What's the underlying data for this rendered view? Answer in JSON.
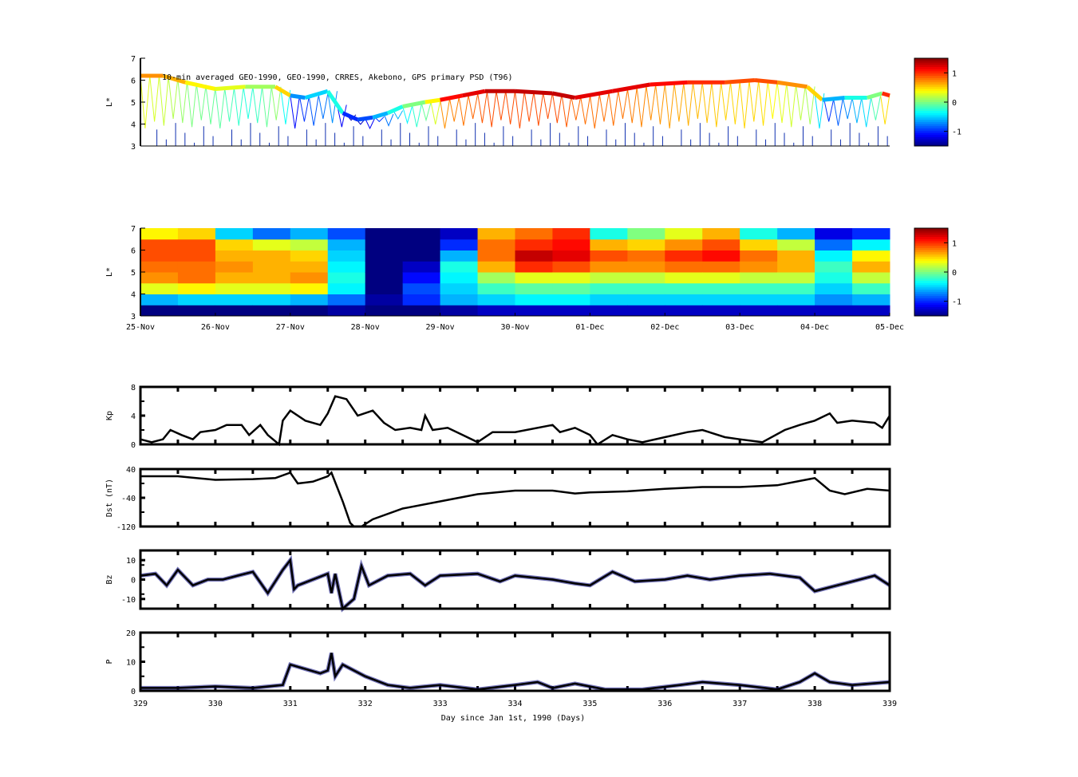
{
  "chart_data": [
    {
      "type": "heatmap",
      "title": "10-min averaged GEO-1990, GEO-1990, CRRES, Akebono, GPS  primary PSD (T96)",
      "ylabel": "L*",
      "ylim": [
        3,
        7
      ],
      "yticks": [
        "3",
        "4",
        "5",
        "6",
        "7"
      ],
      "xlim": [
        329,
        339
      ],
      "colorbar": {
        "range": [
          -1.5,
          1.5
        ],
        "ticks": [
          "1",
          "0",
          "-1"
        ],
        "colormap": "jet"
      },
      "primary_trace": [
        [
          329.0,
          6.2,
          0.7
        ],
        [
          329.3,
          6.2,
          0.6
        ],
        [
          329.6,
          5.9,
          0.4
        ],
        [
          330.0,
          5.6,
          0.3
        ],
        [
          330.4,
          5.7,
          0.1
        ],
        [
          330.8,
          5.7,
          0.5
        ],
        [
          331.0,
          5.3,
          -0.7
        ],
        [
          331.2,
          5.2,
          -0.5
        ],
        [
          331.5,
          5.5,
          -0.3
        ],
        [
          331.7,
          4.5,
          -1.0
        ],
        [
          331.9,
          4.2,
          -0.9
        ],
        [
          332.1,
          4.3,
          -0.6
        ],
        [
          332.3,
          4.5,
          -0.3
        ],
        [
          332.5,
          4.8,
          0.0
        ],
        [
          332.8,
          5.0,
          0.4
        ],
        [
          333.0,
          5.1,
          1.1
        ],
        [
          333.3,
          5.3,
          1.2
        ],
        [
          333.6,
          5.5,
          1.3
        ],
        [
          334.0,
          5.5,
          1.3
        ],
        [
          334.5,
          5.4,
          1.3
        ],
        [
          334.8,
          5.2,
          1.2
        ],
        [
          335.3,
          5.5,
          1.2
        ],
        [
          335.8,
          5.8,
          1.1
        ],
        [
          336.3,
          5.9,
          1.0
        ],
        [
          336.8,
          5.9,
          0.9
        ],
        [
          337.2,
          6.0,
          0.9
        ],
        [
          337.5,
          5.9,
          0.7
        ],
        [
          337.9,
          5.7,
          0.5
        ],
        [
          338.1,
          5.1,
          -0.6
        ],
        [
          338.4,
          5.2,
          -0.3
        ],
        [
          338.7,
          5.2,
          0.0
        ],
        [
          338.9,
          5.4,
          1.0
        ],
        [
          339.0,
          5.3,
          0.8
        ]
      ]
    },
    {
      "type": "heatmap",
      "ylabel": "L*",
      "ylim": [
        3,
        7
      ],
      "yticks": [
        "3",
        "4",
        "5",
        "6",
        "7"
      ],
      "xtick_labels": [
        "25-Nov",
        "26-Nov",
        "27-Nov",
        "28-Nov",
        "29-Nov",
        "30-Nov",
        "01-Dec",
        "02-Dec",
        "03-Dec",
        "04-Dec",
        "05-Dec"
      ],
      "colorbar": {
        "range": [
          -1.5,
          1.5
        ],
        "ticks": [
          "1",
          "0",
          "-1"
        ],
        "colormap": "jet"
      },
      "col_step_days": 0.5,
      "row_L_edges": [
        3,
        3.5,
        4,
        4.5,
        5,
        5.5,
        6,
        6.5,
        7
      ],
      "grid": [
        [
          -1.5,
          -0.6,
          0.3,
          0.7,
          0.8,
          0.9,
          0.9,
          0.4
        ],
        [
          -1.5,
          -0.5,
          0.4,
          0.8,
          0.8,
          0.9,
          0.9,
          0.5
        ],
        [
          -1.5,
          -0.5,
          0.3,
          0.6,
          0.7,
          0.6,
          0.5,
          -0.5
        ],
        [
          -1.5,
          -0.5,
          0.3,
          0.6,
          0.6,
          0.6,
          0.3,
          -0.8
        ],
        [
          -1.5,
          -0.6,
          0.4,
          0.7,
          0.6,
          0.5,
          0.2,
          -0.6
        ],
        [
          -1.4,
          -0.8,
          -0.4,
          -0.3,
          -0.4,
          -0.5,
          -0.6,
          -0.9
        ],
        [
          -1.5,
          -1.4,
          -1.5,
          -1.5,
          -1.5,
          -1.5,
          -1.5,
          -1.5
        ],
        [
          -1.5,
          -1.0,
          -0.9,
          -1.1,
          -1.3,
          -1.5,
          -1.5,
          -1.5
        ],
        [
          -1.4,
          -0.6,
          -0.5,
          -0.4,
          -0.3,
          -0.6,
          -1.0,
          -1.3
        ],
        [
          -1.3,
          -0.5,
          -0.2,
          0.1,
          0.6,
          0.8,
          0.8,
          0.6
        ],
        [
          -1.3,
          -0.4,
          -0.1,
          0.3,
          1.0,
          1.3,
          1.0,
          0.8
        ],
        [
          -1.3,
          -0.4,
          -0.1,
          0.3,
          0.9,
          1.2,
          1.1,
          1.0
        ],
        [
          -1.3,
          -0.5,
          -0.2,
          0.2,
          0.7,
          0.9,
          0.6,
          -0.3
        ],
        [
          -1.3,
          -0.5,
          -0.2,
          0.2,
          0.7,
          0.8,
          0.5,
          0.0
        ],
        [
          -1.3,
          -0.5,
          -0.2,
          0.3,
          0.8,
          1.0,
          0.7,
          0.3
        ],
        [
          -1.3,
          -0.5,
          -0.2,
          0.3,
          0.8,
          1.1,
          0.9,
          0.6
        ],
        [
          -1.3,
          -0.5,
          -0.2,
          0.2,
          0.7,
          0.8,
          0.5,
          -0.3
        ],
        [
          -1.3,
          -0.5,
          -0.2,
          0.2,
          0.6,
          0.6,
          0.2,
          -0.6
        ],
        [
          -1.3,
          -0.7,
          -0.5,
          -0.3,
          -0.2,
          -0.4,
          -0.8,
          -1.2
        ],
        [
          -1.3,
          -0.6,
          -0.2,
          0.2,
          0.6,
          0.4,
          -0.4,
          -1.0
        ]
      ]
    },
    {
      "type": "line",
      "ylabel": "Kp",
      "ylim": [
        0,
        8
      ],
      "yticks": [
        "0",
        "4",
        "8"
      ],
      "xlim": [
        329,
        339
      ],
      "points": [
        [
          329.0,
          0.7
        ],
        [
          329.15,
          0.3
        ],
        [
          329.3,
          0.7
        ],
        [
          329.4,
          2
        ],
        [
          329.55,
          1.3
        ],
        [
          329.7,
          0.7
        ],
        [
          329.8,
          1.7
        ],
        [
          330.0,
          2
        ],
        [
          330.15,
          2.7
        ],
        [
          330.35,
          2.7
        ],
        [
          330.45,
          1.3
        ],
        [
          330.6,
          2.7
        ],
        [
          330.7,
          1.3
        ],
        [
          330.85,
          0
        ],
        [
          330.9,
          3.3
        ],
        [
          331.0,
          4.7
        ],
        [
          331.2,
          3.3
        ],
        [
          331.4,
          2.7
        ],
        [
          331.5,
          4.3
        ],
        [
          331.6,
          6.7
        ],
        [
          331.75,
          6.3
        ],
        [
          331.9,
          4
        ],
        [
          332.1,
          4.7
        ],
        [
          332.25,
          3
        ],
        [
          332.4,
          2
        ],
        [
          332.6,
          2.3
        ],
        [
          332.75,
          2
        ],
        [
          332.8,
          4
        ],
        [
          332.9,
          2
        ],
        [
          333.1,
          2.3
        ],
        [
          333.3,
          1.3
        ],
        [
          333.5,
          0.3
        ],
        [
          333.7,
          1.7
        ],
        [
          334.0,
          1.7
        ],
        [
          334.5,
          2.7
        ],
        [
          334.6,
          1.7
        ],
        [
          334.8,
          2.3
        ],
        [
          335.0,
          1.3
        ],
        [
          335.1,
          0
        ],
        [
          335.3,
          1.3
        ],
        [
          335.5,
          0.7
        ],
        [
          335.7,
          0.3
        ],
        [
          336.0,
          1
        ],
        [
          336.3,
          1.7
        ],
        [
          336.5,
          2
        ],
        [
          336.8,
          1
        ],
        [
          337.0,
          0.7
        ],
        [
          337.3,
          0.3
        ],
        [
          337.6,
          2
        ],
        [
          337.8,
          2.7
        ],
        [
          338.0,
          3.3
        ],
        [
          338.2,
          4.3
        ],
        [
          338.3,
          3
        ],
        [
          338.5,
          3.3
        ],
        [
          338.8,
          3
        ],
        [
          338.9,
          2.3
        ],
        [
          339.0,
          4
        ]
      ]
    },
    {
      "type": "line",
      "ylabel": "Dst (nT)",
      "ylim": [
        -120,
        40
      ],
      "yticks": [
        "-120",
        "-40",
        "40"
      ],
      "xlim": [
        329,
        339
      ],
      "points": [
        [
          329,
          20
        ],
        [
          329.5,
          20
        ],
        [
          330,
          10
        ],
        [
          330.5,
          12
        ],
        [
          330.8,
          15
        ],
        [
          331,
          30
        ],
        [
          331.1,
          0
        ],
        [
          331.3,
          5
        ],
        [
          331.5,
          20
        ],
        [
          331.55,
          30
        ],
        [
          331.7,
          -50
        ],
        [
          331.8,
          -110
        ],
        [
          331.85,
          -120
        ],
        [
          331.95,
          -120
        ],
        [
          332.1,
          -100
        ],
        [
          332.5,
          -70
        ],
        [
          333,
          -50
        ],
        [
          333.5,
          -30
        ],
        [
          334,
          -20
        ],
        [
          334.5,
          -20
        ],
        [
          334.8,
          -28
        ],
        [
          335,
          -25
        ],
        [
          335.5,
          -22
        ],
        [
          336,
          -15
        ],
        [
          336.5,
          -10
        ],
        [
          337,
          -10
        ],
        [
          337.5,
          -5
        ],
        [
          338,
          15
        ],
        [
          338.2,
          -20
        ],
        [
          338.4,
          -30
        ],
        [
          338.7,
          -15
        ],
        [
          339,
          -20
        ]
      ]
    },
    {
      "type": "line",
      "ylabel": "Bz",
      "ylim": [
        -15,
        15
      ],
      "yticks": [
        "-10",
        "0",
        "10"
      ],
      "xlim": [
        329,
        339
      ],
      "points": [
        [
          329,
          2
        ],
        [
          329.2,
          3
        ],
        [
          329.35,
          -3
        ],
        [
          329.5,
          5
        ],
        [
          329.7,
          -3
        ],
        [
          329.9,
          0
        ],
        [
          330.1,
          0
        ],
        [
          330.3,
          2
        ],
        [
          330.5,
          4
        ],
        [
          330.7,
          -7
        ],
        [
          330.9,
          5
        ],
        [
          331.0,
          10
        ],
        [
          331.05,
          -5
        ],
        [
          331.1,
          -3
        ],
        [
          331.3,
          0
        ],
        [
          331.5,
          3
        ],
        [
          331.55,
          -7
        ],
        [
          331.6,
          3
        ],
        [
          331.7,
          -15
        ],
        [
          331.85,
          -10
        ],
        [
          331.95,
          7
        ],
        [
          332.05,
          -3
        ],
        [
          332.3,
          2
        ],
        [
          332.6,
          3
        ],
        [
          332.8,
          -3
        ],
        [
          333,
          2
        ],
        [
          333.5,
          3
        ],
        [
          333.8,
          -1
        ],
        [
          334,
          2
        ],
        [
          334.5,
          0
        ],
        [
          334.8,
          -2
        ],
        [
          335.0,
          -3
        ],
        [
          335.3,
          4
        ],
        [
          335.6,
          -1
        ],
        [
          336,
          0
        ],
        [
          336.3,
          2
        ],
        [
          336.6,
          0
        ],
        [
          337,
          2
        ],
        [
          337.4,
          3
        ],
        [
          337.8,
          1
        ],
        [
          338,
          -6
        ],
        [
          338.2,
          -4
        ],
        [
          338.5,
          -1
        ],
        [
          338.8,
          2
        ],
        [
          339,
          -3
        ]
      ]
    },
    {
      "type": "line",
      "ylabel": "P",
      "ylim": [
        0,
        20
      ],
      "yticks": [
        "0",
        "10",
        "20"
      ],
      "xlim": [
        329,
        339
      ],
      "xticks": [
        "329",
        "330",
        "331",
        "332",
        "333",
        "334",
        "335",
        "336",
        "337",
        "338",
        "339"
      ],
      "xlabel": "Day since Jan 1st, 1990 (Days)",
      "points": [
        [
          329,
          1
        ],
        [
          329.5,
          1
        ],
        [
          330,
          1.5
        ],
        [
          330.5,
          1
        ],
        [
          330.9,
          2
        ],
        [
          331,
          9
        ],
        [
          331.4,
          6
        ],
        [
          331.5,
          7
        ],
        [
          331.55,
          13
        ],
        [
          331.6,
          5
        ],
        [
          331.7,
          9
        ],
        [
          332,
          5
        ],
        [
          332.3,
          2
        ],
        [
          332.6,
          1
        ],
        [
          332.8,
          1.5
        ],
        [
          333,
          2
        ],
        [
          333.5,
          0.5
        ],
        [
          334,
          2
        ],
        [
          334.3,
          3
        ],
        [
          334.5,
          1
        ],
        [
          334.8,
          2.5
        ],
        [
          335.2,
          0.5
        ],
        [
          335.7,
          0.5
        ],
        [
          336.2,
          2
        ],
        [
          336.5,
          3
        ],
        [
          337,
          2
        ],
        [
          337.5,
          0.5
        ],
        [
          337.8,
          3
        ],
        [
          338,
          6
        ],
        [
          338.2,
          3
        ],
        [
          338.5,
          2
        ],
        [
          339,
          3
        ]
      ]
    }
  ],
  "colors": {
    "line": "#000000",
    "overlay": "#1a1a8c"
  }
}
